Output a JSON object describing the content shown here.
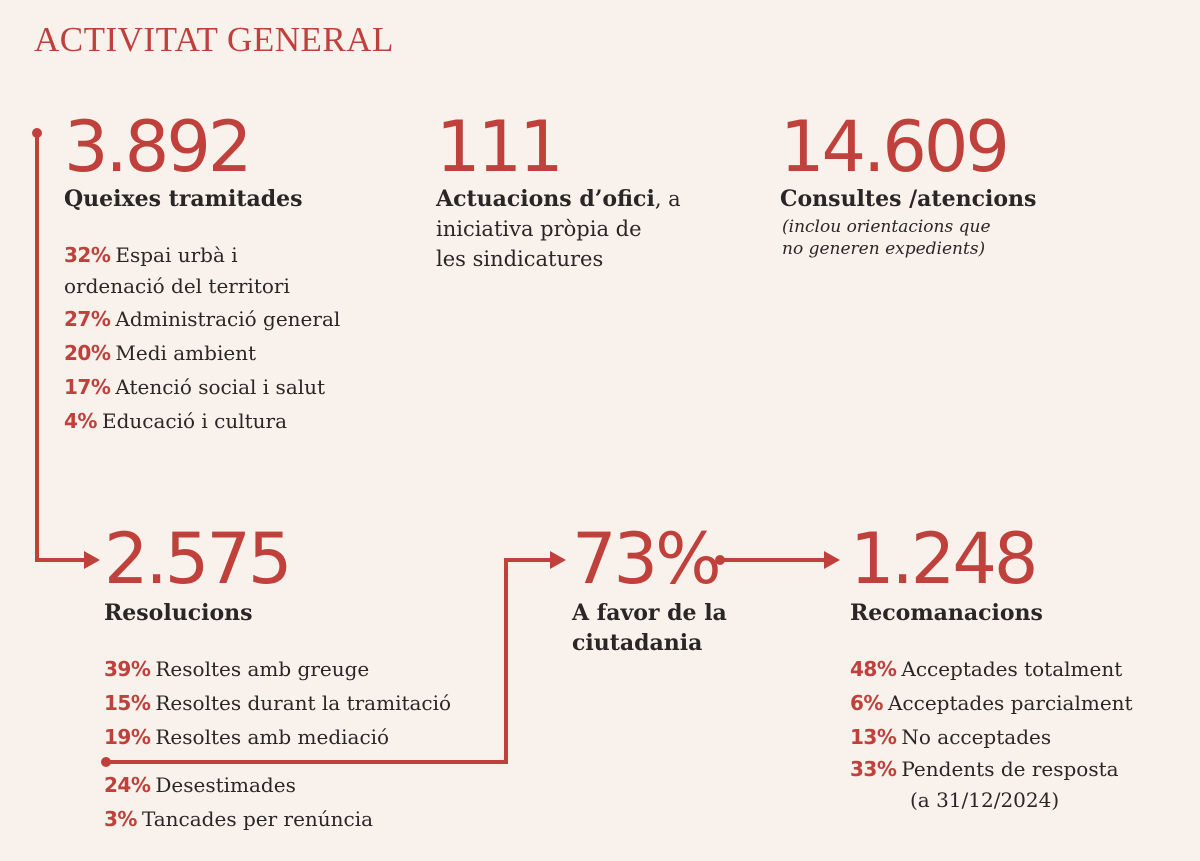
{
  "title": "ACTIVITAT GENERAL",
  "colors": {
    "accent": "#c0403c",
    "text": "#2b2626",
    "background": "#f8f1ec"
  },
  "queixes": {
    "value": "3.892",
    "label": "Queixes tramitades",
    "items": [
      {
        "pct": "32%",
        "text": "Espai urbà i",
        "text2": "ordenació del territori"
      },
      {
        "pct": "27%",
        "text": "Administració general"
      },
      {
        "pct": "20%",
        "text": "Medi ambient"
      },
      {
        "pct": "17%",
        "text": "Atenció social i salut"
      },
      {
        "pct": "4%",
        "text": "Educació i cultura"
      }
    ]
  },
  "actuacions": {
    "value": "111",
    "label_bold": "Actuacions d’ofici",
    "label_rest": ", a",
    "line2": "iniciativa pròpia de",
    "line3": "les sindicatures"
  },
  "consultes": {
    "value": "14.609",
    "label": "Consultes /atencions",
    "note1": "(inclou orientacions que",
    "note2": "no generen expedients)"
  },
  "resolucions": {
    "value": "2.575",
    "label": "Resolucions",
    "items": [
      {
        "pct": "39%",
        "text": "Resoltes amb greuge"
      },
      {
        "pct": "15%",
        "text": "Resoltes durant la tramitació"
      },
      {
        "pct": "19%",
        "text": "Resoltes amb mediació"
      },
      {
        "pct": "24%",
        "text": "Desestimades"
      },
      {
        "pct": "3%",
        "text": "Tancades per renúncia"
      }
    ]
  },
  "favor": {
    "value": "73%",
    "line1": "A favor de la",
    "line2": "ciutadania"
  },
  "recomanacions": {
    "value": "1.248",
    "label": "Recomanacions",
    "items": [
      {
        "pct": "48%",
        "text": "Acceptades totalment"
      },
      {
        "pct": "6%",
        "text": "Acceptades parcialment"
      },
      {
        "pct": "13%",
        "text": "No acceptades"
      },
      {
        "pct": "33%",
        "text": "Pendents de resposta",
        "text2": "(a 31/12/2024)"
      }
    ]
  }
}
